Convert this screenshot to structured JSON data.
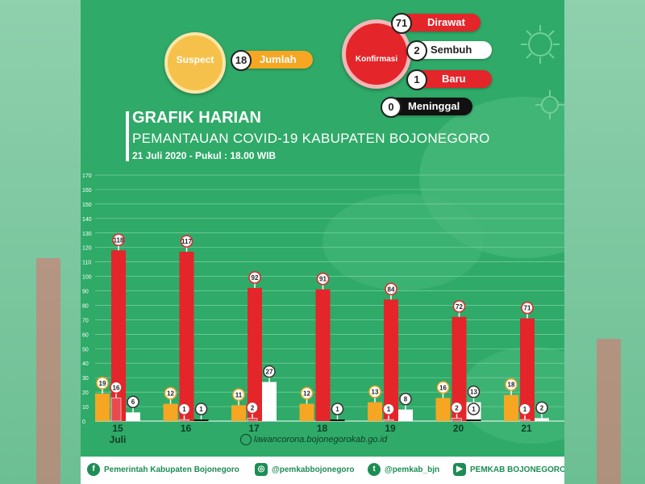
{
  "header": {
    "suspect": {
      "label": "Suspect",
      "count": "18",
      "count_label": "Jumlah"
    },
    "konfirmasi": {
      "label": "Konfirmasi",
      "items": [
        {
          "value": "71",
          "label": "Dirawat"
        },
        {
          "value": "2",
          "label": "Sembuh"
        },
        {
          "value": "1",
          "label": "Baru"
        },
        {
          "value": "0",
          "label": "Meninggal"
        }
      ]
    }
  },
  "title": {
    "line1": "GRAFIK HARIAN",
    "line2": "PEMANTAUAN COVID-19 KABUPATEN BOJONEGORO",
    "line3": "21 Juli 2020 - Pukul : 18.00 WIB"
  },
  "website": "lawancorona.bojonegorokab.go.id",
  "footer": {
    "facebook": "Pemerintah Kabupaten Bojonegoro",
    "instagram": "@pemkabbojonegoro",
    "twitter": "@pemkab_bjn",
    "youtube": "PEMKAB BOJONEGORO"
  },
  "colors": {
    "panel": "#2faa68",
    "suspect": "#f6a623",
    "dirawat": "#e4252a",
    "sembuh": "#ffffff",
    "baru": "#e4252a",
    "meninggal": "#111111"
  },
  "chart_data": {
    "type": "bar",
    "categories": [
      "15",
      "16",
      "17",
      "18",
      "19",
      "20",
      "21"
    ],
    "category_sublabels": [
      "Juli",
      "",
      "",
      "",
      "",
      "",
      ""
    ],
    "ylim": [
      0,
      170
    ],
    "yticks": [
      0,
      10,
      20,
      30,
      40,
      50,
      60,
      70,
      80,
      90,
      100,
      110,
      120,
      130,
      140,
      150,
      160,
      170
    ],
    "grid": true,
    "series": [
      {
        "name": "Suspect",
        "color": "#f6a623",
        "values": [
          19,
          12,
          11,
          12,
          13,
          16,
          18
        ]
      },
      {
        "name": "Dirawat",
        "color": "#e4252a",
        "values": [
          118,
          117,
          92,
          91,
          84,
          72,
          71
        ]
      },
      {
        "name": "Baru",
        "color": "#e4252a",
        "values": [
          16,
          1,
          2,
          null,
          1,
          2,
          1
        ]
      },
      {
        "name": "Sembuh",
        "color": "#ffffff",
        "values": [
          6,
          null,
          27,
          null,
          8,
          13,
          2
        ]
      },
      {
        "name": "Meninggal",
        "color": "#111111",
        "values": [
          null,
          1,
          null,
          1,
          null,
          1,
          null
        ]
      }
    ]
  }
}
